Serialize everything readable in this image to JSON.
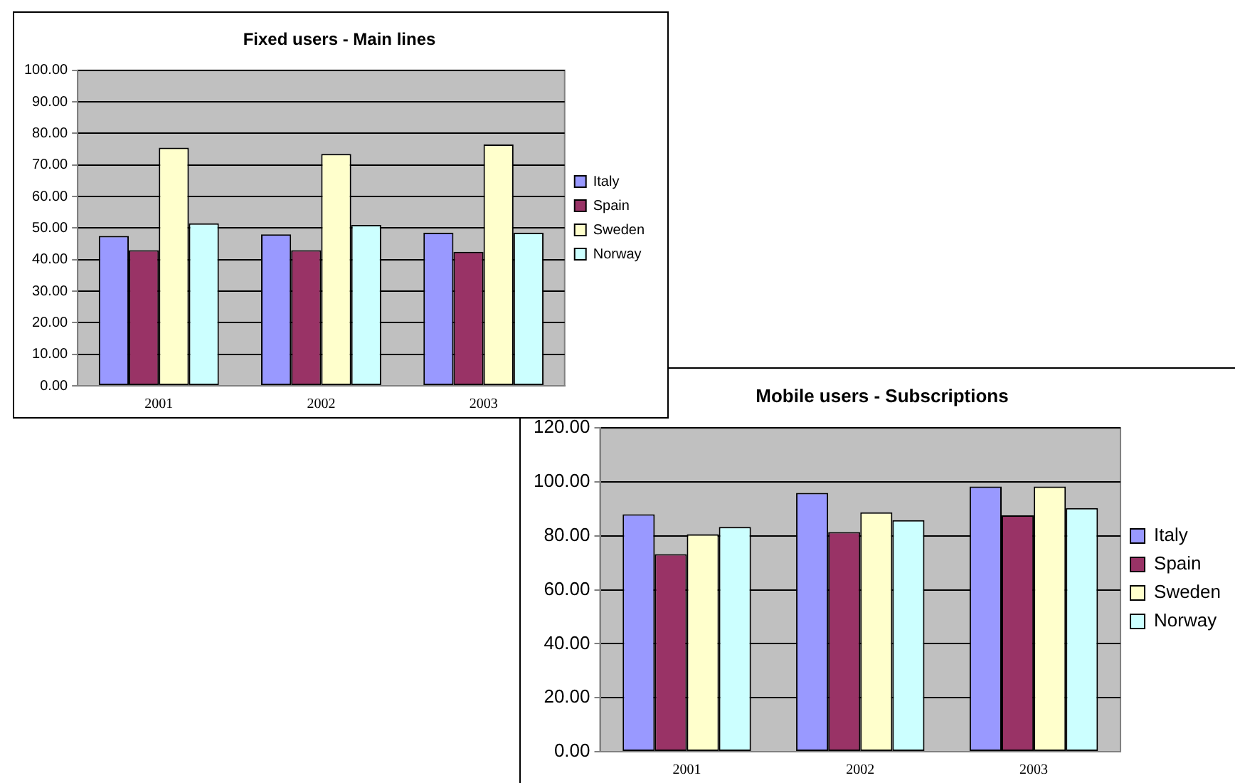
{
  "chart_data": [
    {
      "type": "bar",
      "title": "Fixed users - Main lines",
      "categories": [
        "2001",
        "2002",
        "2003"
      ],
      "series": [
        {
          "name": "Italy",
          "color": "#9999ff",
          "values": [
            47.5,
            48,
            48.5
          ]
        },
        {
          "name": "Spain",
          "color": "#993366",
          "values": [
            43,
            43,
            42.5
          ]
        },
        {
          "name": "Sweden",
          "color": "#ffffcc",
          "values": [
            75.5,
            73.5,
            76.5
          ]
        },
        {
          "name": "Norway",
          "color": "#ccffff",
          "values": [
            51.5,
            51,
            48.5
          ]
        }
      ],
      "ylim": [
        0,
        100
      ],
      "yticks": [
        {
          "value": 0,
          "label": "0.00"
        },
        {
          "value": 10,
          "label": "10.00"
        },
        {
          "value": 20,
          "label": "20.00"
        },
        {
          "value": 30,
          "label": "30.00"
        },
        {
          "value": 40,
          "label": "40.00"
        },
        {
          "value": 50,
          "label": "50.00"
        },
        {
          "value": 60,
          "label": "60.00"
        },
        {
          "value": 70,
          "label": "70.00"
        },
        {
          "value": 80,
          "label": "80.00"
        },
        {
          "value": 90,
          "label": "90.00"
        },
        {
          "value": 100,
          "label": "100.00"
        }
      ],
      "grid": "y",
      "legend": "right"
    },
    {
      "type": "bar",
      "title": "Mobile users - Subscriptions",
      "categories": [
        "2001",
        "2002",
        "2003"
      ],
      "series": [
        {
          "name": "Italy",
          "color": "#9999ff",
          "values": [
            88,
            95.9,
            98.3
          ]
        },
        {
          "name": "Spain",
          "color": "#993366",
          "values": [
            73.2,
            81.4,
            87.6
          ]
        },
        {
          "name": "Sweden",
          "color": "#ffffcc",
          "values": [
            80.6,
            88.7,
            98.3
          ]
        },
        {
          "name": "Norway",
          "color": "#ccffff",
          "values": [
            83.3,
            85.8,
            90.3
          ]
        }
      ],
      "ylim": [
        0,
        120
      ],
      "yticks": [
        {
          "value": 0,
          "label": "0.00"
        },
        {
          "value": 20,
          "label": "20.00"
        },
        {
          "value": 40,
          "label": "40.00"
        },
        {
          "value": 60,
          "label": "60.00"
        },
        {
          "value": 80,
          "label": "80.00"
        },
        {
          "value": 100,
          "label": "100.00"
        },
        {
          "value": 120,
          "label": "120.00"
        }
      ],
      "grid": "y",
      "legend": "right"
    }
  ]
}
